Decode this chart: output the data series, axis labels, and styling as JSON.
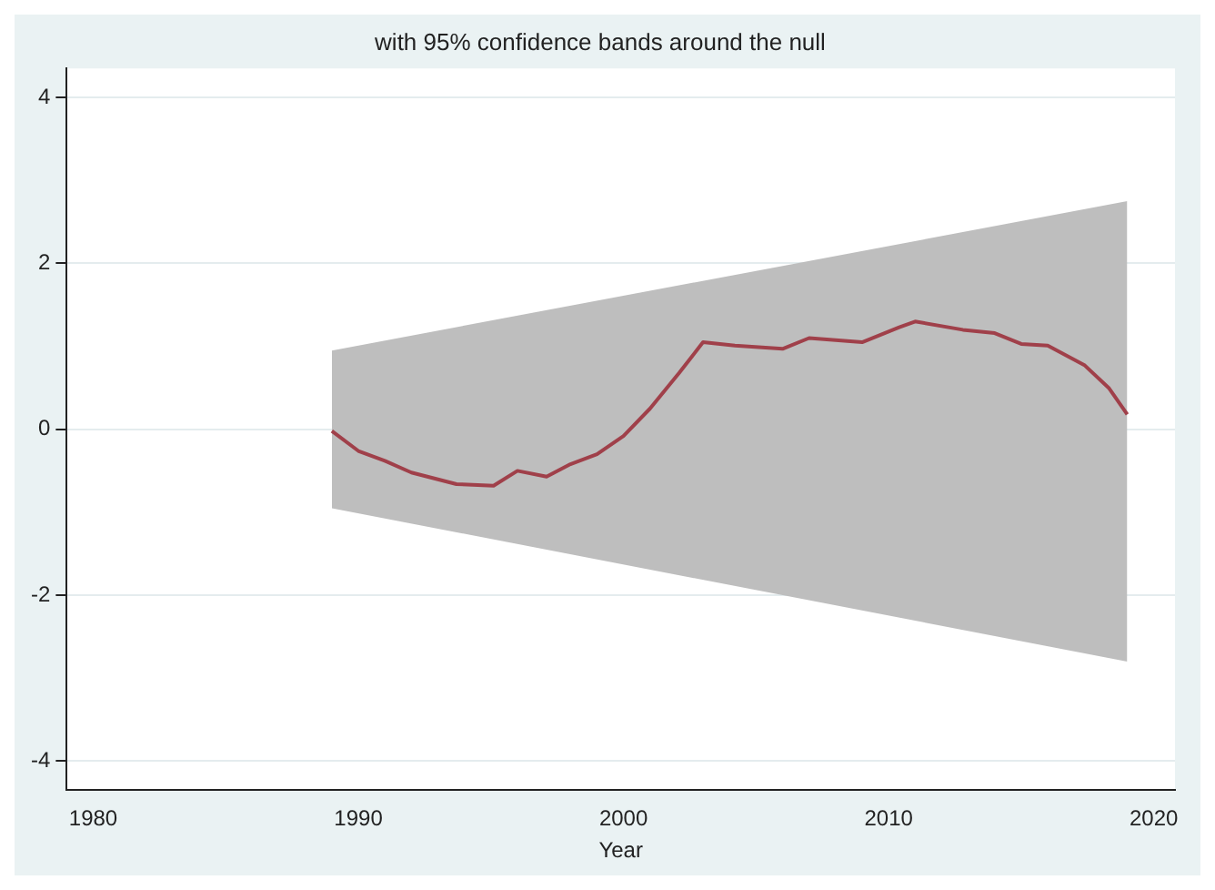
{
  "chart_data": {
    "type": "line",
    "title": "with 95% confidence bands around the null",
    "xlabel": "Year",
    "series": [
      {
        "type": "area",
        "color": "#bebebe",
        "x": [
          1989,
          2019
        ],
        "lower": [
          -0.95,
          -2.8
        ],
        "upper": [
          0.95,
          2.75
        ],
        "values": [
          null,
          null
        ]
      },
      {
        "color": "#a0404a",
        "x": [
          1989,
          1990,
          1991,
          1992,
          1993.7,
          1995.1,
          1996,
          1997.1,
          1998,
          1999,
          2000,
          2001,
          2002.1,
          2003,
          2004.2,
          2006,
          2007,
          2009,
          2010.4,
          2011,
          2012.8,
          2014,
          2015,
          2016,
          2017.4,
          2018.3,
          2019
        ],
        "values": [
          -0.02,
          -0.26,
          -0.38,
          -0.52,
          -0.66,
          -0.68,
          -0.5,
          -0.57,
          -0.42,
          -0.3,
          -0.08,
          0.25,
          0.68,
          1.05,
          1.01,
          0.97,
          1.1,
          1.05,
          1.23,
          1.3,
          1.2,
          1.16,
          1.03,
          1.01,
          0.77,
          0.5,
          0.18
        ]
      }
    ],
    "xlim": [
      1979,
      2020.8
    ],
    "xticks": [
      1980,
      1990,
      2000,
      2010,
      2020
    ],
    "ylim": [
      -4.35,
      4.35
    ],
    "yticks": [
      -4,
      -2,
      0,
      2,
      4
    ],
    "grid": "y",
    "marker": "none",
    "line_style": "solid",
    "legend": false
  }
}
